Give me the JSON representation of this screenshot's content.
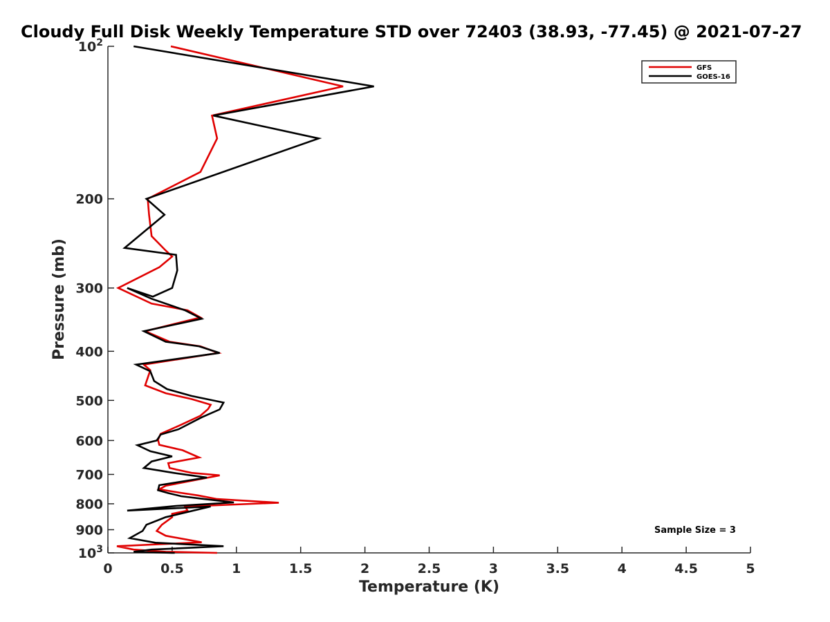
{
  "chart_data": {
    "type": "line",
    "title": "Cloudy Full Disk Weekly Temperature STD over 72403 (38.93, -77.45) @ 2021-07-27",
    "xlabel": "Temperature (K)",
    "ylabel": "Pressure (mb)",
    "xlim": [
      0,
      5
    ],
    "ylim": [
      100,
      1000
    ],
    "y_scale": "log",
    "y_reversed": true,
    "grid": false,
    "legend_position": "top-right",
    "x_ticks": [
      0,
      0.5,
      1,
      1.5,
      2,
      2.5,
      3,
      3.5,
      4,
      4.5,
      5
    ],
    "x_tick_labels": [
      "0",
      "0.5",
      "1",
      "1.5",
      "2",
      "2.5",
      "3",
      "3.5",
      "4",
      "4.5",
      "5"
    ],
    "y_ticks": [
      100,
      200,
      300,
      400,
      500,
      600,
      700,
      800,
      900,
      1000
    ],
    "y_tick_labels": [
      {
        "base": "10",
        "exp": "2"
      },
      {
        "base": "200",
        "exp": ""
      },
      {
        "base": "300",
        "exp": ""
      },
      {
        "base": "400",
        "exp": ""
      },
      {
        "base": "500",
        "exp": ""
      },
      {
        "base": "600",
        "exp": ""
      },
      {
        "base": "700",
        "exp": ""
      },
      {
        "base": "800",
        "exp": ""
      },
      {
        "base": "900",
        "exp": ""
      },
      {
        "base": "10",
        "exp": "3"
      }
    ],
    "annotation": "Sample Size = 3",
    "series": [
      {
        "name": "GFS",
        "color": "#e00000",
        "x": [
          0.49,
          1.83,
          0.81,
          0.85,
          0.72,
          0.31,
          0.32,
          0.34,
          0.45,
          0.5,
          0.4,
          0.08,
          0.34,
          0.62,
          0.72,
          0.29,
          0.48,
          0.72,
          0.86,
          0.28,
          0.33,
          0.29,
          0.45,
          0.65,
          0.8,
          0.78,
          0.72,
          0.56,
          0.41,
          0.39,
          0.4,
          0.58,
          0.71,
          0.47,
          0.48,
          0.65,
          0.87,
          0.45,
          0.4,
          0.55,
          0.7,
          0.85,
          1.33,
          0.6,
          0.62,
          0.5,
          0.5,
          0.42,
          0.38,
          0.45,
          0.73,
          0.07,
          0.2,
          0.45,
          0.85
        ],
        "y": [
          100,
          120,
          137,
          152,
          177,
          200,
          215,
          237,
          253,
          260,
          273,
          300,
          322,
          332,
          343,
          365,
          383,
          391,
          403,
          425,
          436,
          467,
          484,
          497,
          510,
          520,
          536,
          560,
          582,
          598,
          612,
          627,
          648,
          665,
          680,
          695,
          703,
          737,
          749,
          760,
          770,
          783,
          796,
          810,
          825,
          837,
          850,
          880,
          905,
          925,
          953,
          970,
          985,
          995,
          1000
        ]
      },
      {
        "name": "GOES-16",
        "color": "#000000",
        "x": [
          0.2,
          2.07,
          0.82,
          1.64,
          0.3,
          0.44,
          0.13,
          0.53,
          0.54,
          0.5,
          0.35,
          0.15,
          0.34,
          0.6,
          0.73,
          0.28,
          0.45,
          0.71,
          0.87,
          0.22,
          0.33,
          0.36,
          0.46,
          0.65,
          0.9,
          0.87,
          0.73,
          0.55,
          0.41,
          0.38,
          0.23,
          0.33,
          0.5,
          0.34,
          0.28,
          0.51,
          0.68,
          0.77,
          0.4,
          0.39,
          0.47,
          0.57,
          0.75,
          0.98,
          0.53,
          0.15,
          0.8,
          0.45,
          0.3,
          0.27,
          0.17,
          0.37,
          0.9,
          0.34,
          0.2,
          0.5,
          0.52
        ],
        "y": [
          100,
          120,
          137,
          152,
          200,
          215,
          250,
          258,
          277,
          300,
          312,
          300,
          315,
          332,
          345,
          365,
          383,
          391,
          403,
          425,
          438,
          458,
          475,
          490,
          505,
          521,
          540,
          570,
          584,
          600,
          613,
          630,
          645,
          660,
          680,
          695,
          705,
          710,
          735,
          752,
          762,
          773,
          783,
          795,
          808,
          825,
          810,
          850,
          880,
          905,
          935,
          955,
          970,
          985,
          995,
          1000,
          1000
        ]
      }
    ]
  }
}
